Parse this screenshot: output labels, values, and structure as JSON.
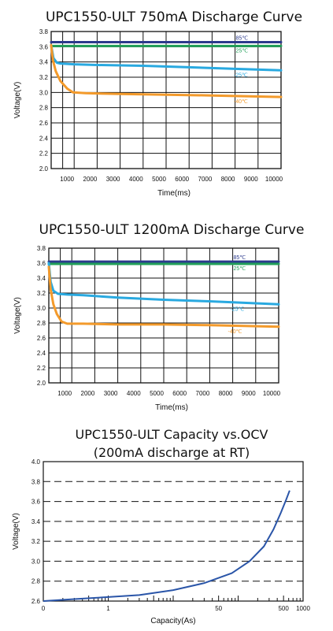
{
  "chart_data": [
    {
      "type": "line",
      "title": "UPC1550-ULT 750mA Discharge Curve",
      "xlabel": "Time(ms)",
      "ylabel": "Voltage(V)",
      "xlim": [
        0,
        10000
      ],
      "ylim": [
        2.0,
        3.8
      ],
      "x_ticks": [
        "1000",
        "2000",
        "3000",
        "4000",
        "5000",
        "6000",
        "7000",
        "8000",
        "9000",
        "10000"
      ],
      "y_ticks": [
        "2.0",
        "2.2",
        "2.4",
        "2.6",
        "2.8",
        "3.0",
        "3.2",
        "3.4",
        "3.6",
        "3.8"
      ],
      "grid": true,
      "series": [
        {
          "name": "85℃",
          "color": "#2b3a8c",
          "x": [
            0,
            10000
          ],
          "y": [
            3.66,
            3.66
          ]
        },
        {
          "name": "25℃",
          "color": "#22a05a",
          "x": [
            0,
            10000
          ],
          "y": [
            3.61,
            3.61
          ]
        },
        {
          "name": "-25℃",
          "color": "#29a9e0",
          "x": [
            0,
            100,
            250,
            400,
            1000,
            2000,
            4000,
            6000,
            8000,
            10000
          ],
          "y": [
            3.62,
            3.45,
            3.39,
            3.38,
            3.37,
            3.36,
            3.35,
            3.33,
            3.31,
            3.29
          ]
        },
        {
          "name": "-40℃",
          "color": "#f39a2b",
          "x": [
            0,
            80,
            200,
            400,
            700,
            950,
            1500,
            3000,
            5000,
            7000,
            10000
          ],
          "y": [
            3.62,
            3.42,
            3.28,
            3.15,
            3.05,
            3.0,
            2.99,
            2.98,
            2.97,
            2.96,
            2.94
          ]
        }
      ]
    },
    {
      "type": "line",
      "title": "UPC1550-ULT 1200mA Discharge Curve",
      "xlabel": "Time(ms)",
      "ylabel": "Voltage(V)",
      "xlim": [
        0,
        10000
      ],
      "ylim": [
        2.0,
        3.8
      ],
      "x_ticks": [
        "1000",
        "2000",
        "3000",
        "4000",
        "5000",
        "6000",
        "7000",
        "8000",
        "9000",
        "10000"
      ],
      "y_ticks": [
        "2.0",
        "2.2",
        "2.4",
        "2.6",
        "2.8",
        "3.0",
        "3.2",
        "3.4",
        "3.6",
        "3.8"
      ],
      "grid": true,
      "series": [
        {
          "name": "85℃",
          "color": "#2b3a8c",
          "x": [
            0,
            10000
          ],
          "y": [
            3.62,
            3.62
          ]
        },
        {
          "name": "25℃",
          "color": "#22a05a",
          "x": [
            0,
            10000
          ],
          "y": [
            3.59,
            3.59
          ]
        },
        {
          "name": "-25℃",
          "color": "#29a9e0",
          "x": [
            0,
            80,
            200,
            400,
            800,
            1500,
            3000,
            5000,
            7000,
            10000
          ],
          "y": [
            3.6,
            3.35,
            3.23,
            3.19,
            3.18,
            3.17,
            3.14,
            3.11,
            3.09,
            3.05
          ]
        },
        {
          "name": "-40℃",
          "color": "#f39a2b",
          "x": [
            0,
            80,
            200,
            350,
            550,
            800,
            1500,
            3000,
            5000,
            7000,
            10000
          ],
          "y": [
            3.55,
            3.25,
            3.05,
            2.92,
            2.82,
            2.79,
            2.79,
            2.78,
            2.78,
            2.77,
            2.75
          ]
        }
      ]
    },
    {
      "type": "line",
      "title": "UPC1550-ULT Capacity vs.OCV",
      "subtitle": "(200mA discharge at RT)",
      "xlabel": "Capacity(As)",
      "ylabel": "Voltage(V)",
      "x_scale": "log",
      "xlim": [
        0.1,
        1000
      ],
      "ylim": [
        2.6,
        4.0
      ],
      "x_ticks": [
        {
          "value": 0.1,
          "label": "0"
        },
        {
          "value": 1,
          "label": "1"
        },
        {
          "value": 50,
          "label": "50"
        },
        {
          "value": 500,
          "label": "500"
        },
        {
          "value": 1000,
          "label": "1000"
        }
      ],
      "y_ticks": [
        "2.6",
        "2.8",
        "3.0",
        "3.2",
        "3.4",
        "3.6",
        "3.8",
        "4.0"
      ],
      "grid": "horizontal dashed",
      "series": [
        {
          "color": "#2a55a8",
          "x": [
            0.1,
            0.3,
            1,
            3,
            10,
            30,
            80,
            150,
            250,
            350,
            450,
            550,
            620
          ],
          "y": [
            2.6,
            2.62,
            2.64,
            2.66,
            2.71,
            2.78,
            2.88,
            3.0,
            3.15,
            3.32,
            3.48,
            3.62,
            3.71
          ]
        }
      ]
    }
  ]
}
